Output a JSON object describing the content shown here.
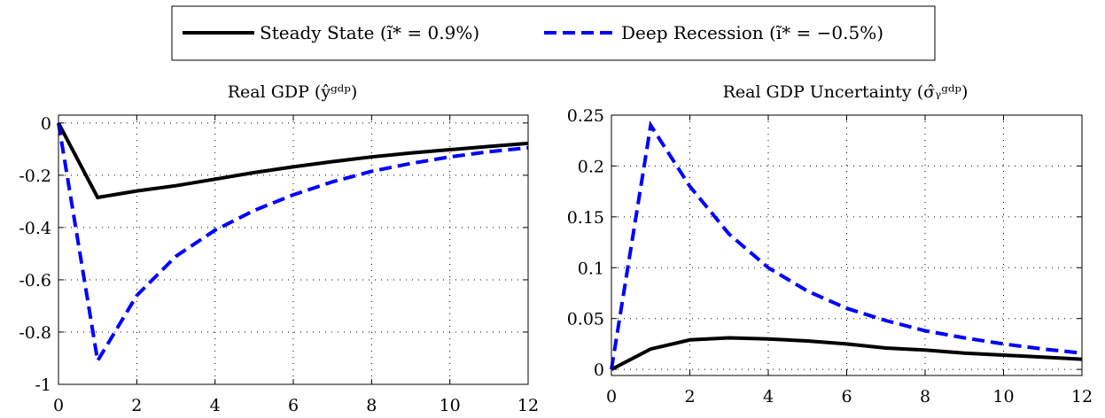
{
  "legend": {
    "entries": [
      {
        "label": "Steady State (ĩ* = 0.9%)",
        "color": "#000000",
        "dash": "solid"
      },
      {
        "label": "Deep Recession (ĩ* = −0.5%)",
        "color": "#0000ff",
        "dash": "dashed"
      }
    ]
  },
  "chart_data": [
    {
      "type": "line",
      "title": "Real GDP (ŷᵍᵈᵖ)",
      "xlabel": "",
      "ylabel": "",
      "xlim": [
        0,
        12
      ],
      "ylim": [
        -1,
        0.03
      ],
      "xticks": [
        0,
        2,
        4,
        6,
        8,
        10,
        12
      ],
      "xtick_labels": [
        "0",
        "2",
        "4",
        "6",
        "8",
        "10",
        "12"
      ],
      "yticks": [
        -1,
        -0.8,
        -0.6,
        -0.4,
        -0.2,
        0
      ],
      "ytick_labels": [
        "-1",
        "-0.8",
        "-0.6",
        "-0.4",
        "-0.2",
        "0"
      ],
      "grid": true,
      "x": [
        0,
        1,
        2,
        3,
        4,
        5,
        6,
        7,
        8,
        9,
        10,
        11,
        12
      ],
      "series": [
        {
          "name": "Steady State (ĩ* = 0.9%)",
          "color": "#000000",
          "dash": "solid",
          "values": [
            0,
            -0.285,
            -0.26,
            -0.24,
            -0.215,
            -0.19,
            -0.168,
            -0.148,
            -0.13,
            -0.115,
            -0.102,
            -0.09,
            -0.078
          ]
        },
        {
          "name": "Deep Recession (ĩ* = −0.5%)",
          "color": "#0000ff",
          "dash": "dashed",
          "values": [
            0,
            -0.91,
            -0.66,
            -0.51,
            -0.41,
            -0.335,
            -0.275,
            -0.225,
            -0.185,
            -0.155,
            -0.13,
            -0.11,
            -0.095
          ]
        }
      ]
    },
    {
      "type": "line",
      "title": "Real GDP Uncertainty (σ̂ᵧᵍᵈᵖ)",
      "xlabel": "",
      "ylabel": "",
      "xlim": [
        0,
        12
      ],
      "ylim": [
        -0.006,
        0.25
      ],
      "xticks": [
        0,
        2,
        4,
        6,
        8,
        10,
        12
      ],
      "xtick_labels": [
        "0",
        "2",
        "4",
        "6",
        "8",
        "10",
        "12"
      ],
      "yticks": [
        0,
        0.05,
        0.1,
        0.15,
        0.2,
        0.25
      ],
      "ytick_labels": [
        "0",
        "0.05",
        "0.1",
        "0.15",
        "0.2",
        "0.25"
      ],
      "grid": true,
      "x": [
        0,
        1,
        2,
        3,
        4,
        5,
        6,
        7,
        8,
        9,
        10,
        11,
        12
      ],
      "series": [
        {
          "name": "Steady State (ĩ* = 0.9%)",
          "color": "#000000",
          "dash": "solid",
          "values": [
            0,
            0.02,
            0.029,
            0.031,
            0.03,
            0.028,
            0.025,
            0.021,
            0.019,
            0.016,
            0.014,
            0.012,
            0.01
          ]
        },
        {
          "name": "Deep Recession (ĩ* = −0.5%)",
          "color": "#0000ff",
          "dash": "dashed",
          "values": [
            0,
            0.24,
            0.18,
            0.133,
            0.1,
            0.077,
            0.06,
            0.048,
            0.038,
            0.031,
            0.025,
            0.02,
            0.016
          ]
        }
      ]
    }
  ]
}
